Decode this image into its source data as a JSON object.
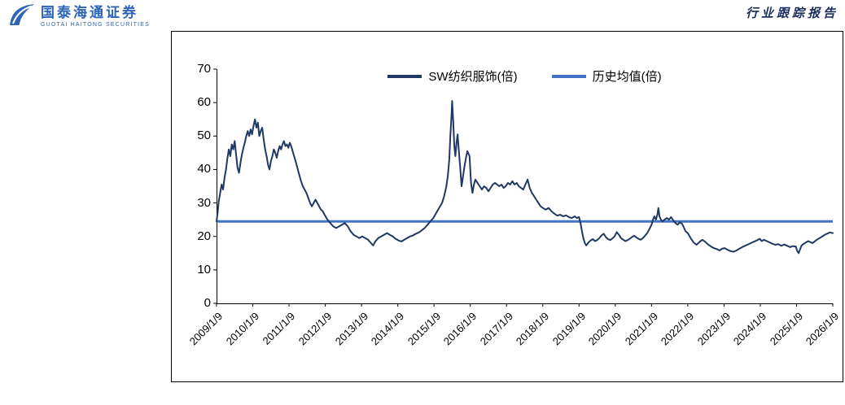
{
  "header": {
    "brand_cn": "国泰海通证券",
    "brand_en": "GUOTAI HAITONG SECURITIES",
    "report_type": "行业跟踪报告"
  },
  "chart_data": {
    "type": "line",
    "title": "",
    "xlabel": "",
    "ylabel": "",
    "grid": false,
    "legend_position": "top-center",
    "ylim": [
      0,
      70
    ],
    "yticks": [
      0,
      10,
      20,
      30,
      40,
      50,
      60,
      70
    ],
    "x_range": [
      2009.02,
      2026.02
    ],
    "xtick_labels": [
      "2009/1/9",
      "2010/1/9",
      "2011/1/9",
      "2012/1/9",
      "2013/1/9",
      "2014/1/9",
      "2015/1/9",
      "2016/1/9",
      "2017/1/9",
      "2018/1/9",
      "2019/1/9",
      "2020/1/9",
      "2021/1/9",
      "2022/1/9",
      "2023/1/9",
      "2024/1/9",
      "2025/1/9",
      "2026/1/9"
    ],
    "series_name": "SW纺织服饰(倍)",
    "series_color": "#1F3864",
    "average_name": "历史均值(倍)",
    "average_color": "#4472C4",
    "average_value": 24.5,
    "points": [
      [
        2009.02,
        24.5
      ],
      [
        2009.05,
        27
      ],
      [
        2009.08,
        30.5
      ],
      [
        2009.12,
        33
      ],
      [
        2009.16,
        35.5
      ],
      [
        2009.2,
        34
      ],
      [
        2009.24,
        37.5
      ],
      [
        2009.28,
        40
      ],
      [
        2009.32,
        43.5
      ],
      [
        2009.36,
        46
      ],
      [
        2009.4,
        44
      ],
      [
        2009.44,
        47.5
      ],
      [
        2009.48,
        46
      ],
      [
        2009.52,
        48.5
      ],
      [
        2009.56,
        44.5
      ],
      [
        2009.6,
        40.5
      ],
      [
        2009.64,
        39
      ],
      [
        2009.68,
        42
      ],
      [
        2009.72,
        44.5
      ],
      [
        2009.76,
        46.5
      ],
      [
        2009.8,
        48
      ],
      [
        2009.84,
        50
      ],
      [
        2009.88,
        51.5
      ],
      [
        2009.92,
        50
      ],
      [
        2009.96,
        52
      ],
      [
        2010.0,
        50.5
      ],
      [
        2010.04,
        53
      ],
      [
        2010.08,
        55
      ],
      [
        2010.12,
        52.5
      ],
      [
        2010.16,
        54
      ],
      [
        2010.2,
        50
      ],
      [
        2010.24,
        51.5
      ],
      [
        2010.28,
        52.5
      ],
      [
        2010.32,
        49
      ],
      [
        2010.36,
        46
      ],
      [
        2010.4,
        44
      ],
      [
        2010.44,
        41.5
      ],
      [
        2010.48,
        40
      ],
      [
        2010.52,
        42.5
      ],
      [
        2010.56,
        44
      ],
      [
        2010.6,
        46
      ],
      [
        2010.64,
        45
      ],
      [
        2010.68,
        43.5
      ],
      [
        2010.72,
        45.5
      ],
      [
        2010.76,
        47
      ],
      [
        2010.8,
        46
      ],
      [
        2010.84,
        47.5
      ],
      [
        2010.88,
        48.5
      ],
      [
        2010.92,
        47
      ],
      [
        2010.96,
        47.5
      ],
      [
        2011.0,
        46.5
      ],
      [
        2011.04,
        48
      ],
      [
        2011.08,
        47
      ],
      [
        2011.12,
        45.5
      ],
      [
        2011.16,
        44
      ],
      [
        2011.2,
        42.5
      ],
      [
        2011.25,
        40.5
      ],
      [
        2011.3,
        38.5
      ],
      [
        2011.35,
        36.5
      ],
      [
        2011.4,
        35
      ],
      [
        2011.45,
        34
      ],
      [
        2011.5,
        33
      ],
      [
        2011.55,
        31.5
      ],
      [
        2011.6,
        30
      ],
      [
        2011.65,
        29
      ],
      [
        2011.7,
        30
      ],
      [
        2011.75,
        31
      ],
      [
        2011.8,
        30
      ],
      [
        2011.85,
        29
      ],
      [
        2011.9,
        28
      ],
      [
        2011.95,
        27.5
      ],
      [
        2012.0,
        26.5
      ],
      [
        2012.08,
        25
      ],
      [
        2012.16,
        24
      ],
      [
        2012.24,
        23
      ],
      [
        2012.32,
        22.5
      ],
      [
        2012.4,
        23
      ],
      [
        2012.48,
        23.5
      ],
      [
        2012.56,
        24
      ],
      [
        2012.64,
        23
      ],
      [
        2012.72,
        21.5
      ],
      [
        2012.8,
        20.5
      ],
      [
        2012.88,
        20
      ],
      [
        2012.96,
        19.5
      ],
      [
        2013.04,
        20
      ],
      [
        2013.12,
        19.5
      ],
      [
        2013.2,
        19
      ],
      [
        2013.28,
        18
      ],
      [
        2013.34,
        17.3
      ],
      [
        2013.4,
        18.5
      ],
      [
        2013.48,
        19.5
      ],
      [
        2013.56,
        20
      ],
      [
        2013.64,
        20.5
      ],
      [
        2013.72,
        21
      ],
      [
        2013.8,
        20.5
      ],
      [
        2013.88,
        20
      ],
      [
        2013.96,
        19.3
      ],
      [
        2014.04,
        18.8
      ],
      [
        2014.12,
        18.5
      ],
      [
        2014.2,
        19
      ],
      [
        2014.28,
        19.5
      ],
      [
        2014.36,
        20
      ],
      [
        2014.44,
        20.3
      ],
      [
        2014.52,
        20.8
      ],
      [
        2014.6,
        21.2
      ],
      [
        2014.68,
        21.8
      ],
      [
        2014.76,
        22.5
      ],
      [
        2014.84,
        23.5
      ],
      [
        2014.92,
        24.5
      ],
      [
        2015.0,
        25.5
      ],
      [
        2015.08,
        27
      ],
      [
        2015.16,
        28.5
      ],
      [
        2015.24,
        30
      ],
      [
        2015.3,
        32
      ],
      [
        2015.36,
        35
      ],
      [
        2015.4,
        38
      ],
      [
        2015.44,
        43
      ],
      [
        2015.47,
        50
      ],
      [
        2015.5,
        56
      ],
      [
        2015.52,
        60.5
      ],
      [
        2015.55,
        54
      ],
      [
        2015.58,
        47
      ],
      [
        2015.61,
        44
      ],
      [
        2015.64,
        48
      ],
      [
        2015.67,
        50.5
      ],
      [
        2015.7,
        46
      ],
      [
        2015.74,
        41
      ],
      [
        2015.78,
        35
      ],
      [
        2015.82,
        38
      ],
      [
        2015.86,
        41
      ],
      [
        2015.9,
        43.5
      ],
      [
        2015.94,
        45.5
      ],
      [
        2016.0,
        44
      ],
      [
        2016.04,
        36
      ],
      [
        2016.08,
        33
      ],
      [
        2016.12,
        35.5
      ],
      [
        2016.16,
        37
      ],
      [
        2016.22,
        36
      ],
      [
        2016.28,
        35
      ],
      [
        2016.34,
        34
      ],
      [
        2016.4,
        35
      ],
      [
        2016.46,
        34.5
      ],
      [
        2016.52,
        33.5
      ],
      [
        2016.58,
        34.5
      ],
      [
        2016.64,
        35.5
      ],
      [
        2016.7,
        36
      ],
      [
        2016.76,
        35.5
      ],
      [
        2016.82,
        35
      ],
      [
        2016.88,
        35.5
      ],
      [
        2016.94,
        34.5
      ],
      [
        2017.0,
        35
      ],
      [
        2017.06,
        36
      ],
      [
        2017.12,
        35.5
      ],
      [
        2017.18,
        36.5
      ],
      [
        2017.24,
        35.5
      ],
      [
        2017.3,
        36
      ],
      [
        2017.36,
        35
      ],
      [
        2017.42,
        34.5
      ],
      [
        2017.48,
        34
      ],
      [
        2017.54,
        35.5
      ],
      [
        2017.6,
        37
      ],
      [
        2017.66,
        34.5
      ],
      [
        2017.72,
        33
      ],
      [
        2017.78,
        32
      ],
      [
        2017.84,
        31
      ],
      [
        2017.9,
        30
      ],
      [
        2017.96,
        29
      ],
      [
        2018.02,
        28.5
      ],
      [
        2018.1,
        28
      ],
      [
        2018.18,
        28.5
      ],
      [
        2018.26,
        27.5
      ],
      [
        2018.34,
        26.8
      ],
      [
        2018.42,
        26.2
      ],
      [
        2018.5,
        26.5
      ],
      [
        2018.58,
        26
      ],
      [
        2018.66,
        26.3
      ],
      [
        2018.74,
        25.8
      ],
      [
        2018.82,
        25.5
      ],
      [
        2018.9,
        26
      ],
      [
        2018.96,
        25.5
      ],
      [
        2019.02,
        25.8
      ],
      [
        2019.06,
        24
      ],
      [
        2019.1,
        21.5
      ],
      [
        2019.14,
        19.5
      ],
      [
        2019.18,
        18
      ],
      [
        2019.22,
        17.3
      ],
      [
        2019.28,
        18.2
      ],
      [
        2019.34,
        18.8
      ],
      [
        2019.4,
        19.2
      ],
      [
        2019.46,
        18.6
      ],
      [
        2019.52,
        18.9
      ],
      [
        2019.58,
        19.5
      ],
      [
        2019.64,
        20.3
      ],
      [
        2019.7,
        20.8
      ],
      [
        2019.76,
        19.8
      ],
      [
        2019.82,
        19.2
      ],
      [
        2019.88,
        18.9
      ],
      [
        2019.94,
        19.4
      ],
      [
        2020.0,
        20
      ],
      [
        2020.06,
        21.3
      ],
      [
        2020.12,
        20.5
      ],
      [
        2020.18,
        19.5
      ],
      [
        2020.24,
        19
      ],
      [
        2020.3,
        18.6
      ],
      [
        2020.36,
        18.9
      ],
      [
        2020.42,
        19.3
      ],
      [
        2020.48,
        19.8
      ],
      [
        2020.54,
        20.2
      ],
      [
        2020.6,
        19.7
      ],
      [
        2020.66,
        19.3
      ],
      [
        2020.72,
        19
      ],
      [
        2020.78,
        19.5
      ],
      [
        2020.84,
        20.2
      ],
      [
        2020.9,
        21
      ],
      [
        2020.96,
        22.2
      ],
      [
        2021.02,
        23.5
      ],
      [
        2021.06,
        25
      ],
      [
        2021.1,
        26
      ],
      [
        2021.14,
        25
      ],
      [
        2021.18,
        26.5
      ],
      [
        2021.21,
        28.5
      ],
      [
        2021.24,
        26
      ],
      [
        2021.28,
        25
      ],
      [
        2021.32,
        24.5
      ],
      [
        2021.38,
        25
      ],
      [
        2021.44,
        25.5
      ],
      [
        2021.5,
        25
      ],
      [
        2021.56,
        25.8
      ],
      [
        2021.62,
        24.8
      ],
      [
        2021.68,
        24
      ],
      [
        2021.74,
        23.5
      ],
      [
        2021.8,
        24.2
      ],
      [
        2021.86,
        23.8
      ],
      [
        2021.92,
        22.5
      ],
      [
        2021.96,
        21.5
      ],
      [
        2022.02,
        21
      ],
      [
        2022.1,
        19.5
      ],
      [
        2022.18,
        18.2
      ],
      [
        2022.26,
        17.5
      ],
      [
        2022.34,
        18.3
      ],
      [
        2022.42,
        19
      ],
      [
        2022.5,
        18.4
      ],
      [
        2022.58,
        17.6
      ],
      [
        2022.66,
        17
      ],
      [
        2022.74,
        16.5
      ],
      [
        2022.82,
        16.2
      ],
      [
        2022.9,
        15.8
      ],
      [
        2022.96,
        16.3
      ],
      [
        2023.04,
        16.5
      ],
      [
        2023.12,
        16
      ],
      [
        2023.2,
        15.6
      ],
      [
        2023.28,
        15.4
      ],
      [
        2023.36,
        15.8
      ],
      [
        2023.44,
        16.3
      ],
      [
        2023.52,
        16.8
      ],
      [
        2023.6,
        17.2
      ],
      [
        2023.68,
        17.6
      ],
      [
        2023.76,
        18
      ],
      [
        2023.84,
        18.4
      ],
      [
        2023.92,
        18.8
      ],
      [
        2024.0,
        19.3
      ],
      [
        2024.06,
        18.6
      ],
      [
        2024.12,
        19
      ],
      [
        2024.2,
        18.6
      ],
      [
        2024.28,
        18.2
      ],
      [
        2024.36,
        17.8
      ],
      [
        2024.44,
        17.5
      ],
      [
        2024.52,
        17.7
      ],
      [
        2024.6,
        17.2
      ],
      [
        2024.68,
        17.6
      ],
      [
        2024.76,
        17.2
      ],
      [
        2024.84,
        16.8
      ],
      [
        2024.92,
        17.1
      ],
      [
        2025.0,
        17
      ],
      [
        2025.04,
        15.6
      ],
      [
        2025.08,
        15
      ],
      [
        2025.12,
        16.2
      ],
      [
        2025.16,
        17.3
      ],
      [
        2025.22,
        17.8
      ],
      [
        2025.28,
        18.2
      ],
      [
        2025.34,
        18.6
      ],
      [
        2025.4,
        18.3
      ],
      [
        2025.46,
        18
      ],
      [
        2025.52,
        18.5
      ],
      [
        2025.58,
        19
      ],
      [
        2025.64,
        19.4
      ],
      [
        2025.7,
        19.8
      ],
      [
        2025.76,
        20.2
      ],
      [
        2025.82,
        20.6
      ],
      [
        2025.88,
        20.9
      ],
      [
        2025.94,
        21.2
      ],
      [
        2026.02,
        21
      ]
    ]
  }
}
